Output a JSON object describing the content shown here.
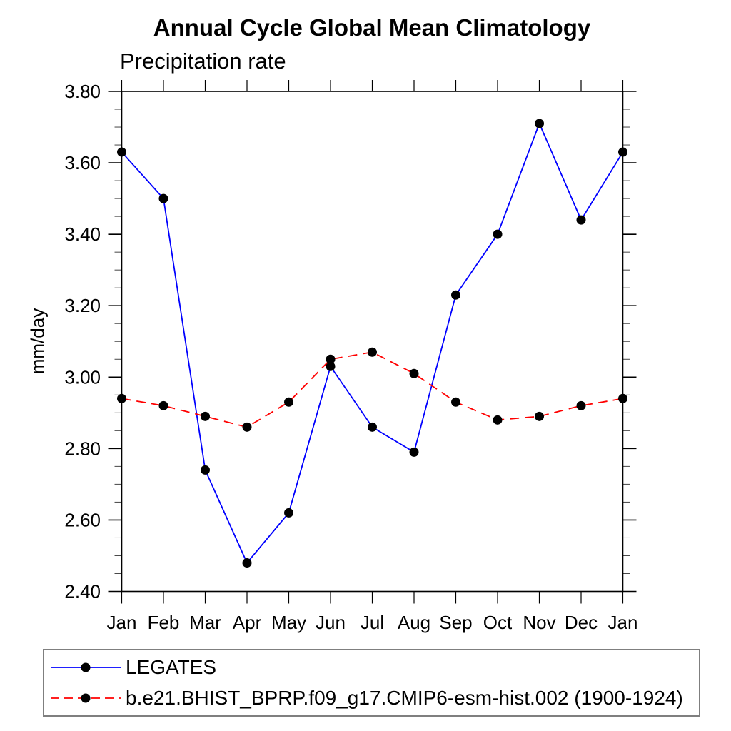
{
  "chart": {
    "title": "Annual Cycle Global Mean Climatology",
    "left_subtitle": "Precipitation rate",
    "ylabel": "mm/day"
  },
  "chart_data": {
    "type": "line",
    "title": "Annual Cycle Global Mean Climatology",
    "subtitle_left": "Precipitation rate",
    "xlabel": "",
    "ylabel": "mm/day",
    "categories": [
      "Jan",
      "Feb",
      "Mar",
      "Apr",
      "May",
      "Jun",
      "Jul",
      "Aug",
      "Sep",
      "Oct",
      "Nov",
      "Dec",
      "Jan"
    ],
    "ylim": [
      2.4,
      3.8
    ],
    "ytick_major": 0.2,
    "ytick_minor": 0.05,
    "ytick_label_format": "2dp",
    "grid": false,
    "legend_position": "bottom-left-box",
    "axis_color": "#000000",
    "marker": "filled-circle",
    "marker_color": "#000000",
    "series": [
      {
        "name": "LEGATES",
        "color": "#0000ff",
        "line_style": "solid",
        "values": [
          3.63,
          3.5,
          2.74,
          2.48,
          2.62,
          3.03,
          2.86,
          2.79,
          3.23,
          3.4,
          3.71,
          3.44,
          3.63
        ]
      },
      {
        "name": "b.e21.BHIST_BPRP.f09_g17.CMIP6-esm-hist.002 (1900-1924)",
        "color": "#ff0000",
        "line_style": "dashed",
        "values": [
          2.94,
          2.92,
          2.89,
          2.86,
          2.93,
          3.05,
          3.07,
          3.01,
          2.93,
          2.88,
          2.89,
          2.92,
          2.94
        ]
      }
    ]
  }
}
